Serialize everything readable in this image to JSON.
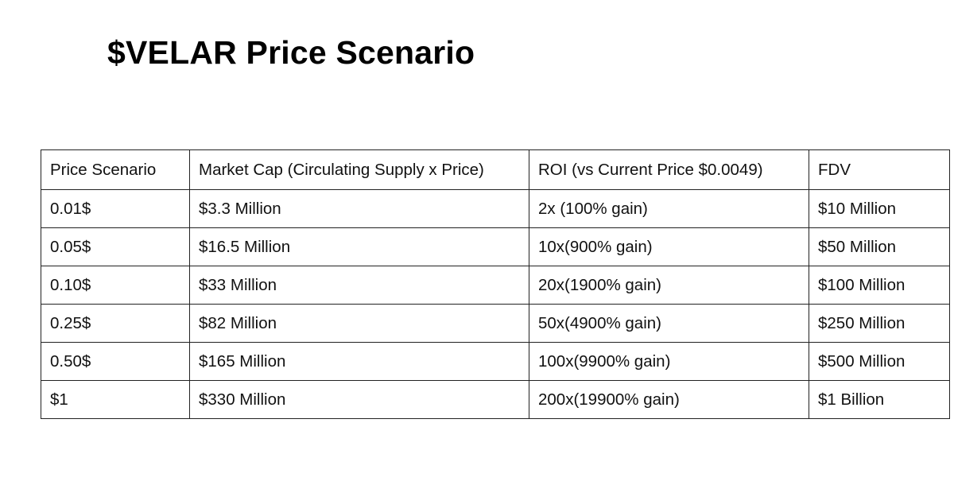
{
  "title": "$VELAR Price Scenario",
  "table": {
    "headers": [
      "Price Scenario",
      "Market Cap (Circulating Supply x Price)",
      "ROI (vs Current Price $0.0049)",
      "FDV"
    ],
    "rows": [
      [
        "0.01$",
        "$3.3 Million",
        "2x (100% gain)",
        "$10 Million"
      ],
      [
        "0.05$",
        "$16.5 Million",
        "10x(900% gain)",
        "$50 Million"
      ],
      [
        "0.10$",
        "$33 Million",
        "20x(1900% gain)",
        "$100 Million"
      ],
      [
        "0.25$",
        "$82 Million",
        "50x(4900% gain)",
        "$250 Million"
      ],
      [
        "0.50$",
        "$165 Million",
        "100x(9900% gain)",
        "$500 Million"
      ],
      [
        "$1",
        "$330 Million",
        "200x(19900% gain)",
        "$1 Billion"
      ]
    ]
  }
}
